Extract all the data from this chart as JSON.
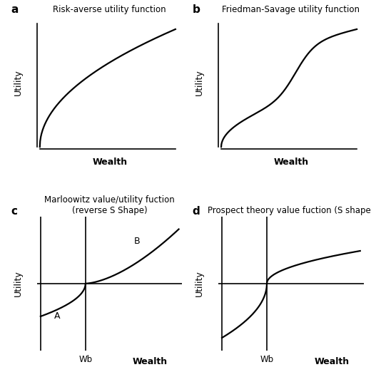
{
  "title_a": "Risk-averse utility function",
  "title_b": "Friedman-Savage utility function",
  "title_c": "Marloowitz value/utility fuction\n(reverse S Shape)",
  "title_d": "Prospect theory value fuction (S shape)",
  "label_a": "a",
  "label_b": "b",
  "label_c": "c",
  "label_d": "d",
  "xlabel": "Wealth",
  "ylabel": "Utility",
  "wb_label": "Wb",
  "B_label": "B",
  "A_label": "A",
  "curve_color": "#000000",
  "axis_color": "#000000",
  "background_color": "#ffffff",
  "title_fontsize": 8.5,
  "label_fontsize": 11,
  "axis_label_fontsize": 9,
  "tick_label_fontsize": 8.5,
  "linewidth": 1.6
}
